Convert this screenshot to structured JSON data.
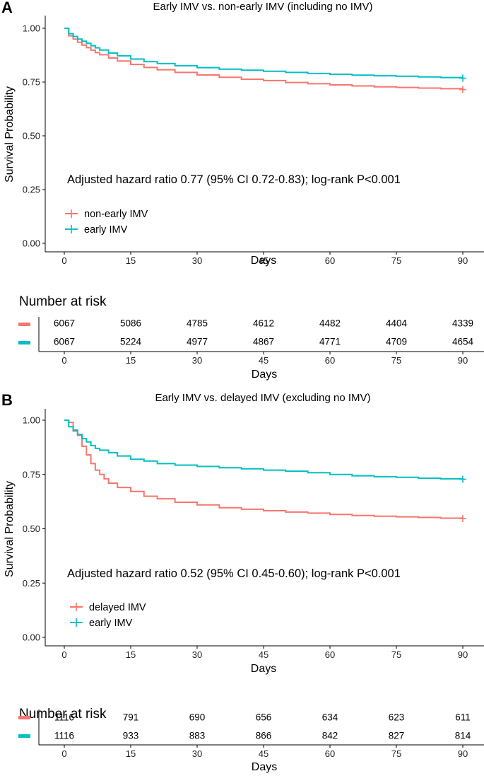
{
  "colors": {
    "series_a": "#F8766D",
    "series_b": "#00BFC4"
  },
  "panels": [
    {
      "letter": "A",
      "title": "Early IMV vs. non-early IMV (including no IMV)",
      "annotation": "Adjusted hazard ratio 0.77 (95% CI 0.72-0.83); log-rank P<0.001",
      "risk_title": "Number at risk",
      "risk_rows": [
        [
          "6067",
          "5086",
          "4785",
          "4612",
          "4482",
          "4404",
          "4339"
        ],
        [
          "6067",
          "5224",
          "4977",
          "4867",
          "4771",
          "4709",
          "4654"
        ]
      ],
      "risk_xlabel": "Days"
    },
    {
      "letter": "B",
      "title": "Early IMV vs. delayed IMV (excluding no IMV)",
      "annotation": "Adjusted hazard ratio 0.52 (95% CI 0.45-0.60); log-rank P<0.001",
      "risk_title": "Number at risk",
      "risk_rows": [
        [
          "1116",
          "791",
          "690",
          "656",
          "634",
          "623",
          "611"
        ],
        [
          "1116",
          "933",
          "883",
          "866",
          "842",
          "827",
          "814"
        ]
      ],
      "risk_xlabel": "Days"
    }
  ],
  "chart_data": [
    {
      "type": "line",
      "step": true,
      "title": "Early IMV vs. non-early IMV (including no IMV)",
      "xlabel": "Days",
      "ylabel": "Survival Probability",
      "xlim": [
        0,
        90
      ],
      "ylim": [
        0,
        1
      ],
      "xticks": [
        "0",
        "15",
        "30",
        "45",
        "60",
        "75",
        "90"
      ],
      "yticks": [
        "0.00",
        "0.25",
        "0.50",
        "0.75",
        "1.00"
      ],
      "legend_position": "bottom-left",
      "series": [
        {
          "name": "non-early IMV",
          "color": "#F8766D",
          "points": [
            [
              0,
              1.0
            ],
            [
              1,
              0.965
            ],
            [
              2,
              0.95
            ],
            [
              3,
              0.935
            ],
            [
              4,
              0.922
            ],
            [
              5,
              0.91
            ],
            [
              6,
              0.898
            ],
            [
              7,
              0.887
            ],
            [
              8,
              0.877
            ],
            [
              10,
              0.862
            ],
            [
              12,
              0.848
            ],
            [
              15,
              0.832
            ],
            [
              18,
              0.818
            ],
            [
              21,
              0.807
            ],
            [
              25,
              0.795
            ],
            [
              30,
              0.783
            ],
            [
              35,
              0.772
            ],
            [
              40,
              0.763
            ],
            [
              45,
              0.757
            ],
            [
              50,
              0.748
            ],
            [
              55,
              0.742
            ],
            [
              60,
              0.737
            ],
            [
              65,
              0.732
            ],
            [
              70,
              0.728
            ],
            [
              75,
              0.725
            ],
            [
              80,
              0.722
            ],
            [
              85,
              0.719
            ],
            [
              90,
              0.715
            ]
          ]
        },
        {
          "name": "early IMV",
          "color": "#00BFC4",
          "points": [
            [
              0,
              1.0
            ],
            [
              1,
              0.975
            ],
            [
              2,
              0.962
            ],
            [
              3,
              0.95
            ],
            [
              4,
              0.94
            ],
            [
              5,
              0.93
            ],
            [
              6,
              0.919
            ],
            [
              7,
              0.909
            ],
            [
              8,
              0.899
            ],
            [
              10,
              0.885
            ],
            [
              12,
              0.872
            ],
            [
              15,
              0.857
            ],
            [
              18,
              0.845
            ],
            [
              21,
              0.836
            ],
            [
              25,
              0.826
            ],
            [
              30,
              0.817
            ],
            [
              35,
              0.81
            ],
            [
              40,
              0.805
            ],
            [
              45,
              0.8
            ],
            [
              50,
              0.795
            ],
            [
              55,
              0.79
            ],
            [
              60,
              0.786
            ],
            [
              65,
              0.782
            ],
            [
              70,
              0.779
            ],
            [
              75,
              0.777
            ],
            [
              80,
              0.774
            ],
            [
              85,
              0.771
            ],
            [
              90,
              0.768
            ]
          ]
        }
      ]
    },
    {
      "type": "line",
      "step": true,
      "title": "Early IMV vs. delayed IMV (excluding no IMV)",
      "xlabel": "Days",
      "ylabel": "Survival Probability",
      "xlim": [
        0,
        90
      ],
      "ylim": [
        0,
        1
      ],
      "xticks": [
        "0",
        "15",
        "30",
        "45",
        "60",
        "75",
        "90"
      ],
      "yticks": [
        "0.00",
        "0.25",
        "0.50",
        "0.75",
        "1.00"
      ],
      "legend_position": "bottom-left",
      "series": [
        {
          "name": "delayed IMV",
          "color": "#F8766D",
          "points": [
            [
              0,
              1.0
            ],
            [
              1,
              0.99
            ],
            [
              2,
              0.95
            ],
            [
              3,
              0.93
            ],
            [
              4,
              0.88
            ],
            [
              5,
              0.84
            ],
            [
              6,
              0.8
            ],
            [
              7,
              0.77
            ],
            [
              8,
              0.75
            ],
            [
              9,
              0.73
            ],
            [
              10,
              0.71
            ],
            [
              12,
              0.69
            ],
            [
              15,
              0.672
            ],
            [
              18,
              0.65
            ],
            [
              21,
              0.638
            ],
            [
              25,
              0.622
            ],
            [
              30,
              0.61
            ],
            [
              35,
              0.597
            ],
            [
              40,
              0.59
            ],
            [
              45,
              0.583
            ],
            [
              50,
              0.577
            ],
            [
              55,
              0.572
            ],
            [
              60,
              0.566
            ],
            [
              65,
              0.561
            ],
            [
              70,
              0.558
            ],
            [
              75,
              0.555
            ],
            [
              80,
              0.552
            ],
            [
              85,
              0.549
            ],
            [
              90,
              0.547
            ]
          ]
        },
        {
          "name": "early IMV",
          "color": "#00BFC4",
          "points": [
            [
              0,
              1.0
            ],
            [
              1,
              0.97
            ],
            [
              2,
              0.955
            ],
            [
              3,
              0.935
            ],
            [
              4,
              0.915
            ],
            [
              5,
              0.9
            ],
            [
              6,
              0.883
            ],
            [
              7,
              0.87
            ],
            [
              8,
              0.862
            ],
            [
              10,
              0.85
            ],
            [
              12,
              0.835
            ],
            [
              15,
              0.82
            ],
            [
              18,
              0.812
            ],
            [
              21,
              0.8
            ],
            [
              25,
              0.793
            ],
            [
              30,
              0.787
            ],
            [
              35,
              0.781
            ],
            [
              40,
              0.776
            ],
            [
              45,
              0.77
            ],
            [
              50,
              0.765
            ],
            [
              55,
              0.758
            ],
            [
              60,
              0.75
            ],
            [
              65,
              0.744
            ],
            [
              70,
              0.74
            ],
            [
              75,
              0.737
            ],
            [
              80,
              0.733
            ],
            [
              85,
              0.73
            ],
            [
              90,
              0.728
            ]
          ]
        }
      ]
    }
  ]
}
